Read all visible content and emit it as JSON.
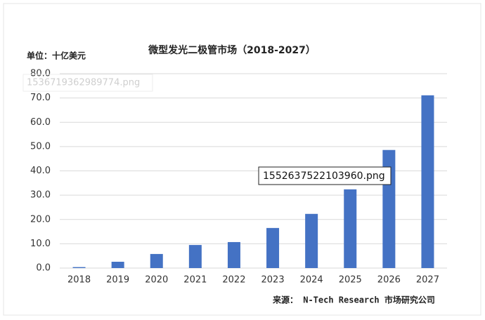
{
  "chart_data": {
    "type": "bar",
    "title": "微型发光二极管市场（2018-2027）",
    "unit_label": "单位：十亿美元",
    "source": "来源： N-Tech Research 市场研究公司",
    "categories": [
      "2018",
      "2019",
      "2020",
      "2021",
      "2022",
      "2023",
      "2024",
      "2025",
      "2026",
      "2027"
    ],
    "values": [
      0.4,
      2.6,
      5.8,
      9.5,
      10.7,
      16.5,
      22.3,
      32.4,
      48.6,
      71.1
    ],
    "color": "#4472c4",
    "ylim": [
      0,
      80
    ],
    "yticks": [
      {
        "value": 0,
        "label": "0.0"
      },
      {
        "value": 10,
        "label": "10.0"
      },
      {
        "value": 20,
        "label": "20.0"
      },
      {
        "value": 30,
        "label": "30.0"
      },
      {
        "value": 40,
        "label": "40.0"
      },
      {
        "value": 50,
        "label": "50.0"
      },
      {
        "value": 60,
        "label": "60.0"
      },
      {
        "value": 70,
        "label": "70.0"
      },
      {
        "value": 80,
        "label": "80.0"
      }
    ],
    "grid": true
  },
  "overlay_labels": [
    "1536719362989774.png",
    "1552637522103960.png"
  ]
}
